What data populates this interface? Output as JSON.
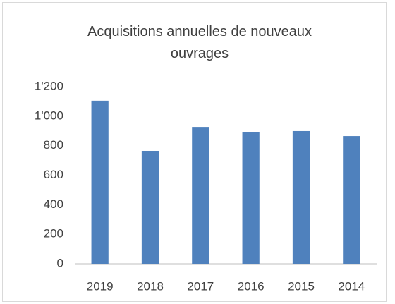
{
  "chart_data": {
    "type": "bar",
    "title": "Acquisitions annuelles de nouveaux ouvrages",
    "categories": [
      "2019",
      "2018",
      "2017",
      "2016",
      "2015",
      "2014"
    ],
    "values": [
      1105,
      765,
      927,
      894,
      899,
      865
    ],
    "color": "#4f81bd",
    "ylim": [
      0,
      1200
    ],
    "yticks": [
      0,
      200,
      400,
      600,
      800,
      {
        "value": 1000,
        "label": "1'000"
      },
      {
        "value": 1200,
        "label": "1'200"
      }
    ],
    "grid": false
  }
}
